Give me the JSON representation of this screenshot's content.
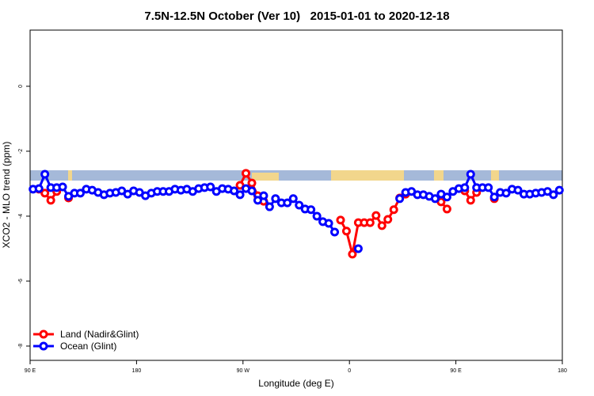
{
  "chart_data": {
    "type": "line",
    "title": "7.5N-12.5N October (Ver 10)   2015-01-01 to 2020-12-18",
    "xlabel": "Longitude (deg E)",
    "ylabel": "XCO2 - MLO trend (ppm)",
    "xlim": [
      90,
      540
    ],
    "xticks": [
      {
        "value": 90,
        "label": "90 E"
      },
      180,
      {
        "value": 270,
        "label": "90 W"
      },
      {
        "value": 360,
        "label": "0"
      },
      {
        "value": 450,
        "label": "90 E"
      },
      {
        "value": 540,
        "label": "180"
      }
    ],
    "ylim": [
      -8.44,
      1.73
    ],
    "yticks": [
      -8,
      -6,
      -4,
      -2,
      0
    ],
    "legend": "bottom-left",
    "x": [
      92.5,
      97.5,
      102.5,
      107.5,
      112.5,
      117.5,
      122.5,
      127.5,
      132.5,
      137.5,
      142.5,
      147.5,
      152.5,
      157.5,
      162.5,
      167.5,
      172.5,
      177.5,
      182.5,
      187.5,
      192.5,
      197.5,
      202.5,
      207.5,
      212.5,
      217.5,
      222.5,
      227.5,
      232.5,
      237.5,
      242.5,
      247.5,
      252.5,
      257.5,
      262.5,
      267.5,
      272.5,
      277.5,
      282.5,
      287.5,
      292.5,
      297.5,
      302.5,
      307.5,
      312.5,
      317.5,
      322.5,
      327.5,
      332.5,
      337.5,
      342.5,
      347.5,
      352.5,
      357.5,
      362.5,
      367.5,
      372.5,
      377.5,
      382.5,
      387.5,
      392.5,
      397.5,
      402.5,
      407.5,
      412.5,
      417.5,
      422.5,
      427.5,
      432.5,
      437.5,
      442.5,
      447.5,
      452.5,
      457.5,
      462.5,
      467.5,
      472.5,
      477.5,
      482.5,
      487.5,
      492.5,
      497.5,
      502.5,
      507.5,
      512.5,
      517.5,
      522.5,
      527.5,
      532.5,
      537.5
    ],
    "series": [
      {
        "name": "Land (Nadir&Glint)",
        "color": "#ff0000",
        "values": [
          null,
          -3.17,
          -3.29,
          -3.51,
          -3.24,
          null,
          -3.44,
          null,
          null,
          null,
          null,
          null,
          null,
          null,
          null,
          null,
          null,
          null,
          null,
          null,
          null,
          null,
          null,
          null,
          null,
          null,
          null,
          null,
          null,
          null,
          null,
          null,
          null,
          null,
          null,
          -3.05,
          -2.68,
          -2.98,
          -3.37,
          -3.54,
          null,
          null,
          null,
          null,
          null,
          null,
          null,
          null,
          null,
          null,
          null,
          null,
          -4.12,
          -4.46,
          -5.17,
          -4.2,
          -4.2,
          -4.2,
          -3.98,
          -4.29,
          -4.1,
          -3.8,
          -3.44,
          -3.32,
          null,
          null,
          null,
          null,
          null,
          -3.56,
          -3.78,
          null,
          null,
          -3.22,
          -3.51,
          -3.27,
          null,
          null,
          -3.46,
          null,
          null,
          null,
          null,
          null,
          null,
          null,
          null,
          null,
          null,
          null
        ]
      },
      {
        "name": "Ocean (Glint)",
        "color": "#0000ff",
        "values": [
          -3.17,
          -3.15,
          -2.71,
          -3.12,
          -3.12,
          -3.1,
          -3.39,
          -3.29,
          -3.29,
          -3.17,
          -3.2,
          -3.27,
          -3.34,
          -3.29,
          -3.27,
          -3.22,
          -3.32,
          -3.22,
          -3.27,
          -3.37,
          -3.29,
          -3.24,
          -3.24,
          -3.24,
          -3.17,
          -3.2,
          -3.17,
          -3.24,
          -3.15,
          -3.12,
          -3.1,
          -3.24,
          -3.15,
          -3.17,
          -3.22,
          -3.34,
          -3.15,
          -3.22,
          -3.51,
          -3.37,
          -3.71,
          -3.46,
          -3.59,
          -3.59,
          -3.46,
          -3.66,
          -3.78,
          -3.8,
          -4.0,
          -4.17,
          -4.22,
          -4.49,
          null,
          null,
          null,
          -5.0,
          null,
          null,
          null,
          null,
          null,
          null,
          -3.46,
          -3.27,
          -3.24,
          -3.34,
          -3.34,
          -3.39,
          -3.46,
          -3.32,
          -3.41,
          -3.24,
          -3.15,
          -3.12,
          -2.71,
          -3.12,
          -3.12,
          -3.12,
          -3.41,
          -3.27,
          -3.29,
          -3.17,
          -3.2,
          -3.32,
          -3.32,
          -3.29,
          -3.27,
          -3.24,
          -3.34,
          -3.2
        ]
      }
    ]
  }
}
